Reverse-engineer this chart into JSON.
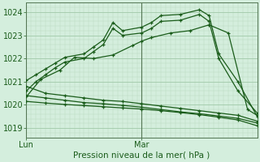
{
  "title": "Pression niveau de la mer( hPa )",
  "background_color": "#d4eedd",
  "grid_color_major": "#a0c8a8",
  "grid_color_minor": "#b8d8c0",
  "line_color": "#1a5c1a",
  "ylim": [
    1018.6,
    1024.4
  ],
  "yticks": [
    1019,
    1020,
    1021,
    1022,
    1023,
    1024
  ],
  "xlim": [
    0,
    48
  ],
  "x_lun": 0,
  "x_mar": 24,
  "series_upper": [
    {
      "x": [
        0,
        2,
        4,
        6,
        8,
        12,
        14,
        16,
        18,
        20,
        24,
        26,
        28,
        32,
        36,
        38,
        40,
        44,
        48
      ],
      "y": [
        1021.05,
        1021.3,
        1021.55,
        1021.8,
        1022.05,
        1022.2,
        1022.5,
        1022.8,
        1023.55,
        1023.2,
        1023.35,
        1023.55,
        1023.85,
        1023.9,
        1024.1,
        1023.85,
        1022.2,
        1021.0,
        1019.5
      ]
    },
    {
      "x": [
        0,
        2,
        4,
        6,
        8,
        12,
        14,
        16,
        18,
        20,
        24,
        26,
        28,
        32,
        36,
        38,
        40,
        44,
        48
      ],
      "y": [
        1020.6,
        1021.0,
        1021.3,
        1021.6,
        1021.85,
        1022.0,
        1022.3,
        1022.6,
        1023.3,
        1023.0,
        1023.1,
        1023.3,
        1023.6,
        1023.65,
        1023.9,
        1023.6,
        1022.0,
        1020.6,
        1019.65
      ]
    },
    {
      "x": [
        0,
        3,
        7,
        10,
        14,
        18,
        22,
        24,
        26,
        30,
        34,
        38,
        42,
        46,
        48
      ],
      "y": [
        1020.35,
        1021.1,
        1021.5,
        1022.05,
        1022.0,
        1022.15,
        1022.55,
        1022.75,
        1022.9,
        1023.1,
        1023.2,
        1023.45,
        1023.1,
        1019.8,
        1019.55
      ]
    }
  ],
  "series_lower": [
    {
      "x": [
        0,
        4,
        8,
        12,
        16,
        20,
        24,
        28,
        32,
        36,
        40,
        44,
        48
      ],
      "y": [
        1020.8,
        1020.5,
        1020.4,
        1020.3,
        1020.2,
        1020.15,
        1020.05,
        1019.95,
        1019.85,
        1019.75,
        1019.65,
        1019.55,
        1019.3
      ]
    },
    {
      "x": [
        0,
        4,
        8,
        12,
        16,
        20,
        24,
        28,
        32,
        36,
        40,
        44,
        48
      ],
      "y": [
        1020.4,
        1020.3,
        1020.2,
        1020.1,
        1020.05,
        1019.98,
        1019.9,
        1019.8,
        1019.7,
        1019.62,
        1019.52,
        1019.42,
        1019.22
      ]
    },
    {
      "x": [
        0,
        4,
        8,
        12,
        16,
        20,
        24,
        28,
        32,
        36,
        40,
        44,
        48
      ],
      "y": [
        1020.15,
        1020.08,
        1020.02,
        1019.97,
        1019.92,
        1019.87,
        1019.82,
        1019.75,
        1019.67,
        1019.58,
        1019.47,
        1019.35,
        1019.1
      ]
    }
  ]
}
